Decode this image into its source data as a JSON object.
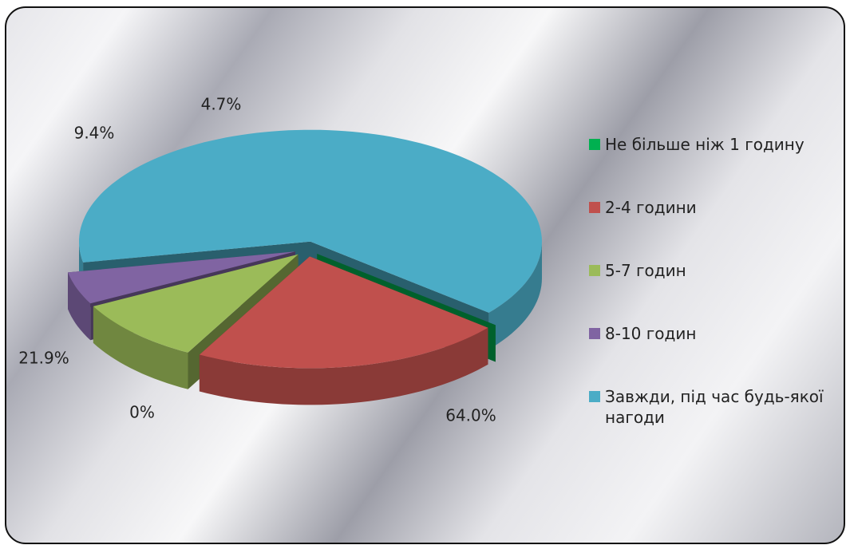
{
  "chart_data": {
    "type": "pie",
    "categories": [
      "Не більше ніж 1 годину",
      "2-4 години",
      "5-7 годин",
      "8-10 годин",
      "Завжди, під час будь-якої нагоди"
    ],
    "values": [
      0,
      21.9,
      9.4,
      4.7,
      64.0
    ],
    "value_labels": [
      "0%",
      "21.9%",
      "9.4%",
      "4.7%",
      "64.0%"
    ],
    "colors": [
      "#00b050",
      "#c0504d",
      "#9bbb59",
      "#8064a2",
      "#4bacc6"
    ],
    "legend": "right"
  }
}
